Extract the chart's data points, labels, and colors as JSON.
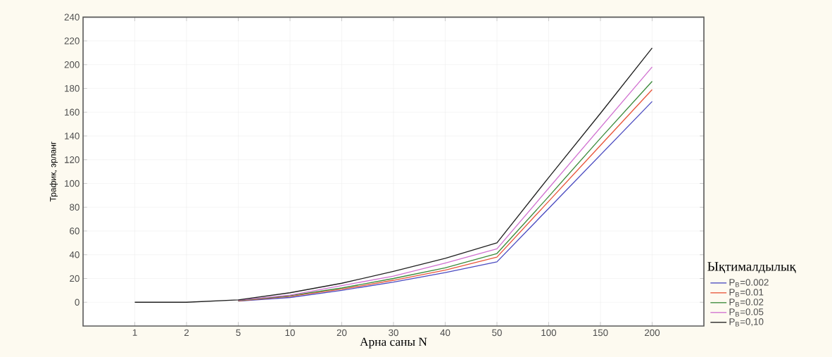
{
  "chart_data": {
    "type": "line",
    "xlabel": "Арна саны N",
    "ylabel": "Трафик, эрланг",
    "legend_title": "Ықтималдылық",
    "categories": [
      "1",
      "2",
      "5",
      "10",
      "20",
      "30",
      "40",
      "50",
      "100",
      "150",
      "200"
    ],
    "series": [
      {
        "name": "P$_{B}$=0.002",
        "color": "#4a4ac0",
        "values": [
          null,
          null,
          1,
          4,
          10,
          17,
          25,
          34,
          79,
          124,
          169
        ]
      },
      {
        "name": "P$_{B}$=0.01",
        "color": "#e8553a",
        "values": [
          null,
          null,
          1.2,
          5,
          11,
          18.5,
          27,
          38,
          85,
          132,
          179
        ]
      },
      {
        "name": "P$_{B}$=0.02",
        "color": "#3a8a3a",
        "values": [
          null,
          null,
          1.4,
          5.5,
          12,
          20,
          29,
          41,
          89,
          138,
          186
        ]
      },
      {
        "name": "P$_{B}$=0.05",
        "color": "#d070d0",
        "values": [
          null,
          null,
          1.7,
          6,
          14,
          22,
          33,
          45,
          96,
          147,
          198
        ]
      },
      {
        "name": "P$_{B}$=0,10",
        "color": "#202020",
        "values": [
          0,
          0,
          2,
          8,
          16,
          26,
          37,
          50,
          105,
          159,
          214
        ]
      }
    ],
    "ylim": [
      -20,
      240
    ],
    "yticks": [
      0,
      20,
      40,
      60,
      80,
      100,
      120,
      140,
      160,
      180,
      200,
      220,
      240
    ],
    "grid": true,
    "legend": "right",
    "marker": "none",
    "line_style": "solid"
  }
}
